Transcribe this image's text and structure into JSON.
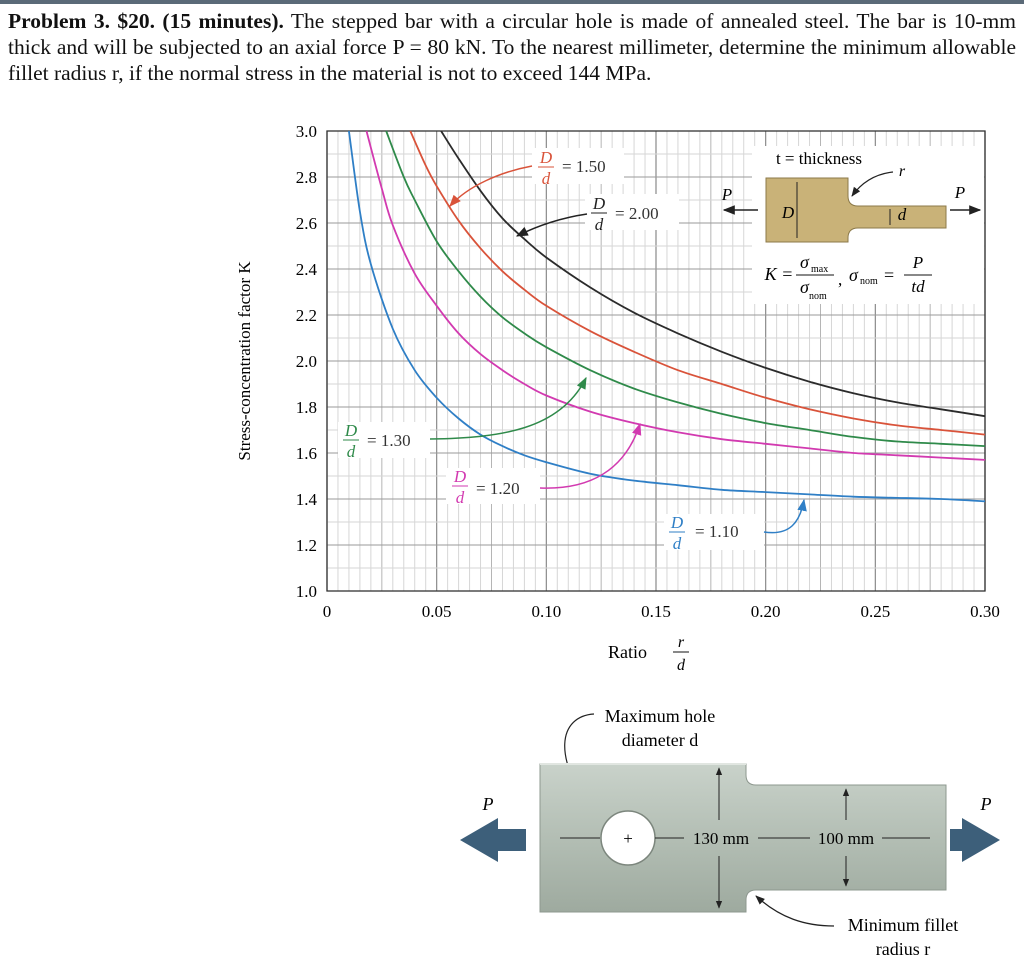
{
  "problem": {
    "heading": "Problem 3. $20. (15 minutes).",
    "text": "The stepped bar with a circular hole is made of annealed steel. The bar is 10-mm thick and will be subjected to an axial force P = 80 kN. To the nearest millimeter, determine the minimum allowable fillet radius r, if the normal stress in the material is not to exceed 144 MPa."
  },
  "chart_data": {
    "type": "line",
    "ylabel": "Stress-concentration factor K",
    "xlabel_prefix": "Ratio",
    "xlabel_num": "r",
    "xlabel_den": "d",
    "xlim": [
      0,
      0.3
    ],
    "ylim": [
      1.0,
      3.0
    ],
    "xticks": [
      "0",
      "0.05",
      "0.10",
      "0.15",
      "0.20",
      "0.25",
      "0.30"
    ],
    "yticks": [
      "1.0",
      "1.2",
      "1.4",
      "1.6",
      "1.8",
      "2.0",
      "2.2",
      "2.4",
      "2.6",
      "2.8",
      "3.0"
    ],
    "grid": true,
    "series": [
      {
        "name": "D/d = 2.00",
        "label_num": "D",
        "label_den": "d",
        "label_val": "= 2.00",
        "color": "#2b2b2b",
        "x": [
          0.052,
          0.06,
          0.07,
          0.08,
          0.09,
          0.1,
          0.12,
          0.14,
          0.16,
          0.18,
          0.2,
          0.22,
          0.24,
          0.26,
          0.28,
          0.3
        ],
        "y": [
          3.0,
          2.88,
          2.74,
          2.62,
          2.53,
          2.45,
          2.32,
          2.21,
          2.12,
          2.04,
          1.97,
          1.91,
          1.86,
          1.82,
          1.79,
          1.76
        ]
      },
      {
        "name": "D/d = 1.50",
        "label_num": "D",
        "label_den": "d",
        "label_val": "= 1.50",
        "color": "#d9533a",
        "x": [
          0.038,
          0.045,
          0.05,
          0.06,
          0.07,
          0.08,
          0.09,
          0.1,
          0.12,
          0.14,
          0.16,
          0.18,
          0.2,
          0.22,
          0.24,
          0.26,
          0.28,
          0.3
        ],
        "y": [
          3.0,
          2.85,
          2.76,
          2.61,
          2.49,
          2.39,
          2.31,
          2.24,
          2.13,
          2.04,
          1.96,
          1.9,
          1.84,
          1.79,
          1.75,
          1.72,
          1.7,
          1.68
        ]
      },
      {
        "name": "D/d = 1.30",
        "label_num": "D",
        "label_den": "d",
        "label_val": "= 1.30",
        "color": "#2f8a4a",
        "x": [
          0.027,
          0.035,
          0.04,
          0.05,
          0.06,
          0.07,
          0.08,
          0.09,
          0.1,
          0.12,
          0.14,
          0.16,
          0.18,
          0.2,
          0.22,
          0.24,
          0.26,
          0.28,
          0.3
        ],
        "y": [
          3.0,
          2.8,
          2.7,
          2.52,
          2.39,
          2.28,
          2.19,
          2.12,
          2.06,
          1.96,
          1.88,
          1.82,
          1.77,
          1.73,
          1.7,
          1.67,
          1.65,
          1.64,
          1.63
        ]
      },
      {
        "name": "D/d = 1.20",
        "label_num": "D",
        "label_den": "d",
        "label_val": "= 1.20",
        "color": "#d23ab0",
        "x": [
          0.018,
          0.025,
          0.03,
          0.04,
          0.05,
          0.06,
          0.07,
          0.08,
          0.09,
          0.1,
          0.12,
          0.14,
          0.16,
          0.18,
          0.2,
          0.22,
          0.24,
          0.26,
          0.28,
          0.3
        ],
        "y": [
          3.0,
          2.75,
          2.59,
          2.38,
          2.24,
          2.12,
          2.03,
          1.96,
          1.9,
          1.85,
          1.78,
          1.73,
          1.69,
          1.66,
          1.64,
          1.62,
          1.6,
          1.59,
          1.58,
          1.57
        ]
      },
      {
        "name": "D/d = 1.10",
        "label_num": "D",
        "label_den": "d",
        "label_val": "= 1.10",
        "color": "#2f7fc6",
        "x": [
          0.01,
          0.015,
          0.02,
          0.03,
          0.04,
          0.05,
          0.06,
          0.07,
          0.08,
          0.09,
          0.1,
          0.12,
          0.14,
          0.16,
          0.18,
          0.2,
          0.22,
          0.24,
          0.26,
          0.28,
          0.3
        ],
        "y": [
          3.0,
          2.65,
          2.42,
          2.14,
          1.96,
          1.84,
          1.75,
          1.68,
          1.63,
          1.59,
          1.56,
          1.51,
          1.48,
          1.46,
          1.44,
          1.43,
          1.42,
          1.41,
          1.405,
          1.4,
          1.39
        ]
      }
    ],
    "inset": {
      "thickness_label": "t = thickness",
      "P": "P",
      "r": "r",
      "D": "D",
      "d": "d",
      "K_lhs": "K =",
      "sigma": "σ",
      "max_sub": "max",
      "nom_sub": "nom",
      "comma": ",",
      "nom_eq": "=",
      "frac_num": "P",
      "frac_den": "td"
    }
  },
  "figure": {
    "max_hole_line1": "Maximum hole",
    "max_hole_line2": "diameter d",
    "P_left": "P",
    "P_right": "P",
    "dim_left": "130 mm",
    "dim_right": "100 mm",
    "min_fillet_line1": "Minimum fillet",
    "min_fillet_line2": "radius r",
    "plus": "+"
  }
}
